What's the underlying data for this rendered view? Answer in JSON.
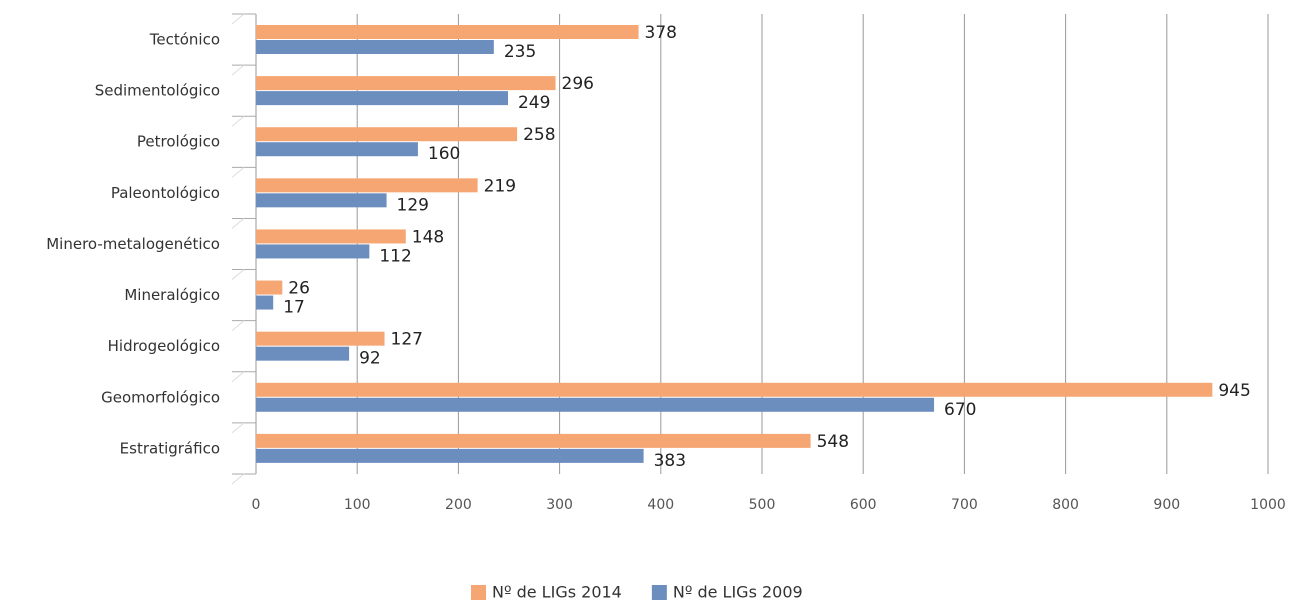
{
  "chart_data": {
    "type": "hbar",
    "categories": [
      "Tectónico",
      "Sedimentológico",
      "Petrológico",
      "Paleontológico",
      "Minero-metalogenético",
      "Mineralógico",
      "Hidrogeológico",
      "Geomorfológico",
      "Estratigráfico"
    ],
    "series": [
      {
        "name": "Nº de LIGs 2014",
        "color": "#f6a673",
        "values": [
          378,
          296,
          258,
          219,
          148,
          26,
          127,
          945,
          548
        ]
      },
      {
        "name": "Nº de LIGs 2009",
        "color": "#6c8ebf",
        "values": [
          235,
          249,
          160,
          129,
          112,
          17,
          92,
          670,
          383
        ]
      }
    ],
    "xlim": [
      0,
      1000
    ],
    "xticks": [
      0,
      100,
      200,
      300,
      400,
      500,
      600,
      700,
      800,
      900,
      1000
    ],
    "grid": true,
    "legend": "bottom"
  }
}
